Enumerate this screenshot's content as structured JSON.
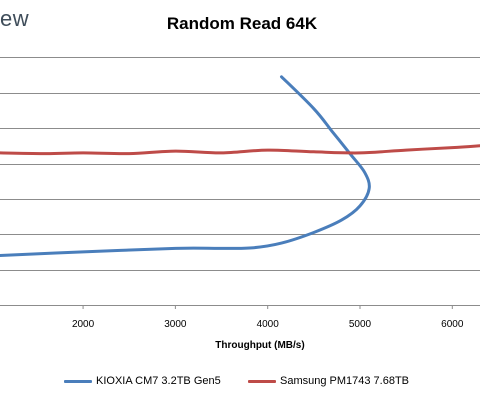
{
  "logo_text": "ew",
  "chart_data": {
    "type": "line",
    "title": "Random Read 64K",
    "xlabel": "Throughput (MB/s)",
    "ylabel": "",
    "xlim": [
      1100,
      6300
    ],
    "ylim": [
      0,
      8
    ],
    "x_ticks": [
      2000,
      3000,
      4000,
      5000,
      6000
    ],
    "y_gridlines": [
      1,
      2,
      3,
      4,
      5,
      6,
      7
    ],
    "grid": true,
    "legend_position": "bottom",
    "series": [
      {
        "name": "KIOXIA CM7 3.2TB Gen5",
        "color": "#4a7ebb",
        "points": [
          [
            1100,
            1.4
          ],
          [
            2000,
            1.5
          ],
          [
            3000,
            1.6
          ],
          [
            3500,
            1.6
          ],
          [
            3850,
            1.62
          ],
          [
            4150,
            1.75
          ],
          [
            4500,
            2.05
          ],
          [
            4800,
            2.4
          ],
          [
            5000,
            2.8
          ],
          [
            5100,
            3.3
          ],
          [
            5050,
            3.75
          ],
          [
            4900,
            4.25
          ],
          [
            4700,
            4.9
          ],
          [
            4500,
            5.55
          ],
          [
            4150,
            6.45
          ]
        ]
      },
      {
        "name": "Samsung PM1743 7.68TB",
        "color": "#be4b48",
        "points": [
          [
            1100,
            4.3
          ],
          [
            1600,
            4.28
          ],
          [
            2000,
            4.3
          ],
          [
            2500,
            4.28
          ],
          [
            3000,
            4.35
          ],
          [
            3500,
            4.3
          ],
          [
            4000,
            4.38
          ],
          [
            4500,
            4.33
          ],
          [
            5000,
            4.3
          ],
          [
            5500,
            4.38
          ],
          [
            6000,
            4.45
          ],
          [
            6300,
            4.5
          ]
        ]
      }
    ]
  }
}
